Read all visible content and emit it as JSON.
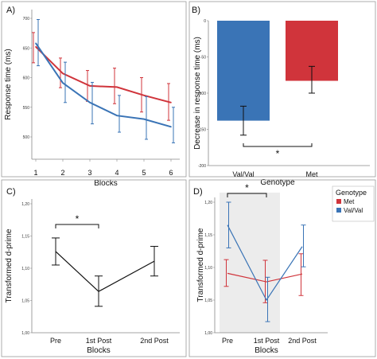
{
  "chart_data": [
    {
      "panel": "A)",
      "type": "line",
      "xlabel": "Blocks",
      "ylabel": "Response time (ms)",
      "x": [
        1,
        2,
        3,
        4,
        5,
        6
      ],
      "x_ticks": [
        "1",
        "2",
        "3",
        "4",
        "5",
        "6"
      ],
      "ylim": [
        500,
        700
      ],
      "y_ticks": [
        "500",
        "550",
        "600",
        "650",
        "700"
      ],
      "series": [
        {
          "color": "#d0343b",
          "values": [
            652,
            607,
            586,
            584,
            570,
            558
          ],
          "err_low": [
            625,
            583,
            560,
            556,
            542,
            528
          ],
          "err_high": [
            676,
            633,
            612,
            616,
            600,
            590
          ]
        },
        {
          "color": "#3a74b6",
          "values": [
            658,
            591,
            558,
            536,
            530,
            517
          ],
          "err_low": [
            620,
            558,
            522,
            508,
            496,
            490
          ],
          "err_high": [
            698,
            626,
            592,
            570,
            568,
            550
          ]
        }
      ]
    },
    {
      "panel": "B)",
      "type": "bar",
      "xlabel": "Genotype",
      "ylabel": "Decrease in response time (ms)",
      "categories": [
        "Val/Val",
        "Met"
      ],
      "values": [
        -138,
        -83
      ],
      "err_low": [
        -158,
        -100
      ],
      "err_high": [
        -118,
        -63
      ],
      "colors": [
        "#3a74b6",
        "#d0343b"
      ],
      "ylim": [
        -200,
        0
      ],
      "y_ticks": [
        "-200",
        "-150",
        "-100",
        "-50",
        "0"
      ],
      "significance": "*"
    },
    {
      "panel": "C)",
      "type": "line",
      "xlabel": "Blocks",
      "ylabel": "Transformed d-prime",
      "categories": [
        "Pre",
        "1st Post",
        "2nd Post"
      ],
      "ylim": [
        1.0,
        1.2
      ],
      "y_ticks": [
        "1,00",
        "1,05",
        "1,10",
        "1,15",
        "1,20"
      ],
      "series": [
        {
          "color": "#111111",
          "values": [
            1.126,
            1.064,
            1.111
          ],
          "err_low": [
            1.105,
            1.041,
            1.088
          ],
          "err_high": [
            1.147,
            1.088,
            1.134
          ]
        }
      ],
      "significance": "*"
    },
    {
      "panel": "D)",
      "type": "line",
      "xlabel": "Blocks",
      "ylabel": "Transformed d-prime",
      "categories": [
        "Pre",
        "1st Post",
        "2nd Post"
      ],
      "ylim": [
        1.0,
        1.2
      ],
      "y_ticks": [
        "1,00",
        "1,05",
        "1,10",
        "1,15",
        "1,20"
      ],
      "legend": {
        "title": "Genotype",
        "placement": "top-right",
        "entries": [
          "Met",
          "Val/Val"
        ]
      },
      "series": [
        {
          "name": "Met",
          "color": "#d0343b",
          "values": [
            1.091,
            1.078,
            1.09
          ],
          "err_low": [
            1.071,
            1.046,
            1.057
          ],
          "err_high": [
            1.112,
            1.111,
            1.121
          ]
        },
        {
          "name": "Val/Val",
          "color": "#3a74b6",
          "values": [
            1.165,
            1.05,
            1.132
          ],
          "err_low": [
            1.13,
            1.017,
            1.101
          ],
          "err_high": [
            1.2,
            1.085,
            1.165
          ]
        }
      ],
      "significance": "*"
    }
  ]
}
